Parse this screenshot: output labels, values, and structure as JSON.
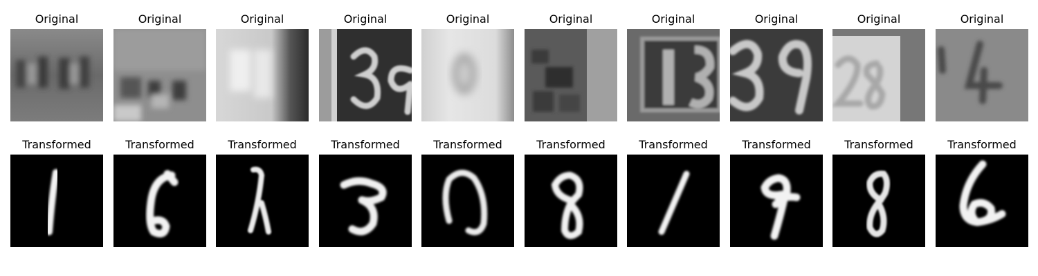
{
  "figure": {
    "columns": [
      {
        "original": {
          "title": "Original",
          "content": "80"
        },
        "transformed": {
          "title": "Transformed",
          "content": "1"
        }
      },
      {
        "original": {
          "title": "Original",
          "content": "4"
        },
        "transformed": {
          "title": "Transformed",
          "content": "6"
        }
      },
      {
        "original": {
          "title": "Original",
          "content": "47"
        },
        "transformed": {
          "title": "Transformed",
          "content": "7"
        }
      },
      {
        "original": {
          "title": "Original",
          "content": "39"
        },
        "transformed": {
          "title": "Transformed",
          "content": "3"
        }
      },
      {
        "original": {
          "title": "Original",
          "content": "0"
        },
        "transformed": {
          "title": "Transformed",
          "content": "0"
        }
      },
      {
        "original": {
          "title": "Original",
          "content": "5"
        },
        "transformed": {
          "title": "Transformed",
          "content": "8"
        }
      },
      {
        "original": {
          "title": "Original",
          "content": "13"
        },
        "transformed": {
          "title": "Transformed",
          "content": "1"
        }
      },
      {
        "original": {
          "title": "Original",
          "content": "39"
        },
        "transformed": {
          "title": "Transformed",
          "content": "9"
        }
      },
      {
        "original": {
          "title": "Original",
          "content": "28"
        },
        "transformed": {
          "title": "Transformed",
          "content": "8"
        }
      },
      {
        "original": {
          "title": "Original",
          "content": "4"
        },
        "transformed": {
          "title": "Transformed",
          "content": "6"
        }
      }
    ]
  }
}
